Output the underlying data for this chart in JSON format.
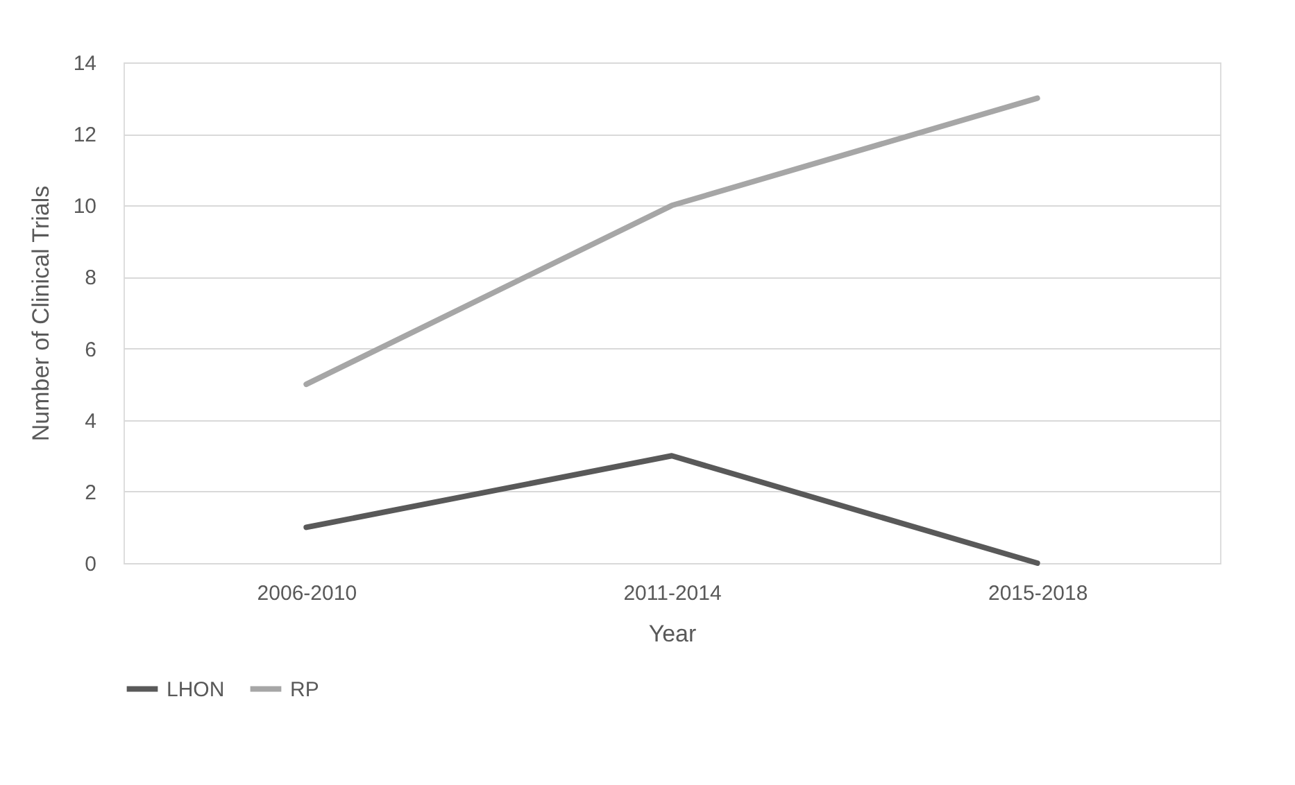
{
  "chart_data": {
    "type": "line",
    "xlabel": "Year",
    "ylabel": "Number of Clinical Trials",
    "categories": [
      "2006-2010",
      "2011-2014",
      "2015-2018"
    ],
    "series": [
      {
        "name": "LHON",
        "color": "#595959",
        "values": [
          1,
          3,
          0
        ]
      },
      {
        "name": "RP",
        "color": "#a6a6a6",
        "values": [
          5,
          10,
          13
        ]
      }
    ],
    "ylim": [
      0,
      14
    ],
    "yticks": [
      0,
      2,
      4,
      6,
      8,
      10,
      12,
      14
    ],
    "grid": "y",
    "legend": "bottom"
  }
}
